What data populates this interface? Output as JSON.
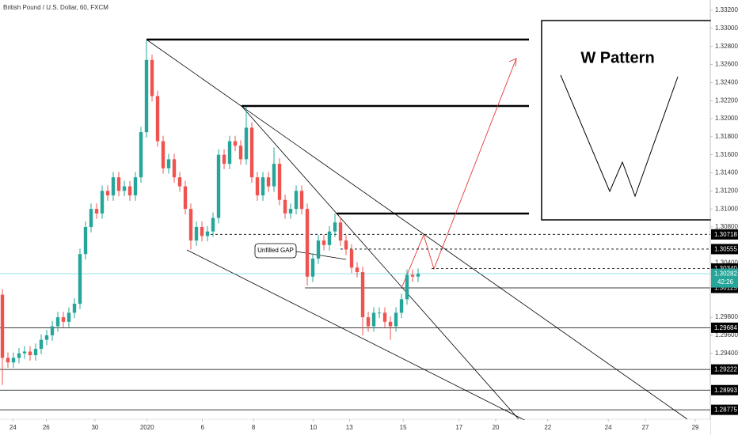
{
  "chart_data": {
    "type": "candlestick",
    "title": "British Pound / U.S. Dollar, 60, FXCM",
    "x": [
      0,
      1,
      2,
      3,
      4,
      5,
      6,
      7,
      8,
      9,
      10,
      11,
      12,
      13,
      14,
      15,
      16,
      17,
      18,
      19,
      20,
      21,
      22,
      23,
      24,
      25,
      26,
      27,
      28,
      29,
      30,
      31,
      32,
      33,
      34,
      35,
      36,
      37,
      38,
      39,
      40,
      41,
      42,
      43,
      44,
      45,
      46,
      47,
      48,
      49,
      50,
      51,
      52,
      53,
      54,
      55,
      56,
      57,
      58,
      59,
      60,
      61,
      62,
      63,
      64,
      65,
      66,
      67,
      68,
      69,
      70,
      71,
      72,
      73,
      74,
      75
    ],
    "ohlc": [
      [
        1.3005,
        1.3011,
        1.2905,
        1.2935
      ],
      [
        1.2935,
        1.2941,
        1.2924,
        1.293
      ],
      [
        1.293,
        1.2941,
        1.2924,
        1.2935
      ],
      [
        1.2935,
        1.2946,
        1.2929,
        1.294
      ],
      [
        1.294,
        1.2948,
        1.2934,
        1.2942
      ],
      [
        1.2942,
        1.2948,
        1.2932,
        1.2938
      ],
      [
        1.2938,
        1.2951,
        1.2932,
        1.2945
      ],
      [
        1.2945,
        1.2961,
        1.2939,
        1.2955
      ],
      [
        1.2955,
        1.2966,
        1.2949,
        1.296
      ],
      [
        1.296,
        1.2976,
        1.2954,
        1.297
      ],
      [
        1.297,
        1.2986,
        1.2964,
        1.298
      ],
      [
        1.298,
        1.2986,
        1.2969,
        1.2975
      ],
      [
        1.2975,
        1.2991,
        1.2969,
        1.2985
      ],
      [
        1.2985,
        1.3001,
        1.2979,
        1.2995
      ],
      [
        1.2995,
        1.3056,
        1.2989,
        1.305
      ],
      [
        1.305,
        1.3086,
        1.3044,
        1.308
      ],
      [
        1.308,
        1.3106,
        1.3074,
        1.31
      ],
      [
        1.31,
        1.3106,
        1.3089,
        1.3095
      ],
      [
        1.3095,
        1.3126,
        1.3089,
        1.312
      ],
      [
        1.312,
        1.3126,
        1.3109,
        1.3115
      ],
      [
        1.3115,
        1.3141,
        1.3109,
        1.3135
      ],
      [
        1.3135,
        1.3141,
        1.3114,
        1.312
      ],
      [
        1.312,
        1.3131,
        1.3114,
        1.3125
      ],
      [
        1.3125,
        1.3131,
        1.3109,
        1.3115
      ],
      [
        1.3115,
        1.3141,
        1.3109,
        1.3135
      ],
      [
        1.3135,
        1.3191,
        1.3129,
        1.3185
      ],
      [
        1.3185,
        1.3287,
        1.3179,
        1.3265
      ],
      [
        1.3265,
        1.3271,
        1.3219,
        1.3225
      ],
      [
        1.3225,
        1.3231,
        1.3169,
        1.3175
      ],
      [
        1.3175,
        1.3181,
        1.3139,
        1.3145
      ],
      [
        1.3145,
        1.3161,
        1.3139,
        1.3155
      ],
      [
        1.3155,
        1.3161,
        1.3129,
        1.3135
      ],
      [
        1.3135,
        1.3141,
        1.3119,
        1.3125
      ],
      [
        1.3125,
        1.3131,
        1.3094,
        1.31
      ],
      [
        1.31,
        1.3106,
        1.3055,
        1.3065
      ],
      [
        1.3065,
        1.3086,
        1.3059,
        1.308
      ],
      [
        1.308,
        1.3086,
        1.3064,
        1.307
      ],
      [
        1.307,
        1.3081,
        1.3064,
        1.3075
      ],
      [
        1.3075,
        1.3096,
        1.3069,
        1.309
      ],
      [
        1.309,
        1.3166,
        1.3084,
        1.316
      ],
      [
        1.316,
        1.3166,
        1.3144,
        1.315
      ],
      [
        1.315,
        1.3181,
        1.3144,
        1.3175
      ],
      [
        1.3175,
        1.3181,
        1.3164,
        1.317
      ],
      [
        1.317,
        1.3176,
        1.3149,
        1.3155
      ],
      [
        1.3155,
        1.3213,
        1.3149,
        1.319
      ],
      [
        1.319,
        1.3196,
        1.3129,
        1.3135
      ],
      [
        1.3135,
        1.3141,
        1.3109,
        1.3115
      ],
      [
        1.3115,
        1.3141,
        1.3109,
        1.3135
      ],
      [
        1.3135,
        1.3141,
        1.3119,
        1.3125
      ],
      [
        1.3125,
        1.3168,
        1.3119,
        1.315
      ],
      [
        1.315,
        1.3156,
        1.3104,
        1.311
      ],
      [
        1.311,
        1.3116,
        1.3089,
        1.3095
      ],
      [
        1.3095,
        1.3106,
        1.3089,
        1.31
      ],
      [
        1.31,
        1.3126,
        1.3094,
        1.312
      ],
      [
        1.312,
        1.3126,
        1.3094,
        1.31
      ],
      [
        1.31,
        1.3106,
        1.3015,
        1.3025
      ],
      [
        1.3025,
        1.3051,
        1.3019,
        1.3045
      ],
      [
        1.3045,
        1.3071,
        1.3039,
        1.3065
      ],
      [
        1.3065,
        1.3071,
        1.3054,
        1.306
      ],
      [
        1.306,
        1.3081,
        1.3054,
        1.3075
      ],
      [
        1.3075,
        1.3095,
        1.3069,
        1.3085
      ],
      [
        1.3085,
        1.3091,
        1.3059,
        1.3065
      ],
      [
        1.3065,
        1.3071,
        1.3049,
        1.3055
      ],
      [
        1.3055,
        1.3061,
        1.3029,
        1.3035
      ],
      [
        1.3035,
        1.3041,
        1.3024,
        1.303
      ],
      [
        1.303,
        1.3036,
        1.296,
        1.298
      ],
      [
        1.298,
        1.2986,
        1.2964,
        1.297
      ],
      [
        1.297,
        1.2991,
        1.2964,
        1.2985
      ],
      [
        1.2985,
        1.2991,
        1.2979,
        1.2985
      ],
      [
        1.2985,
        1.2991,
        1.2969,
        1.2975
      ],
      [
        1.2975,
        1.2981,
        1.2955,
        1.297
      ],
      [
        1.297,
        1.2991,
        1.2964,
        1.2985
      ],
      [
        1.2985,
        1.3006,
        1.2979,
        1.3
      ],
      [
        1.3,
        1.3033,
        1.2994,
        1.3027
      ],
      [
        1.3027,
        1.3033,
        1.3019,
        1.3025
      ],
      [
        1.3025,
        1.3034,
        1.3019,
        1.3028
      ]
    ],
    "up_color": "#26a69a",
    "down_color": "#ef5350",
    "xlim": [
      -0.43,
      127.71
    ],
    "xticks": [
      {
        "value": 1.9,
        "label": "24"
      },
      {
        "value": 7.9,
        "label": "26"
      },
      {
        "value": 16.7,
        "label": "30"
      },
      {
        "value": 26.1,
        "label": "2020"
      },
      {
        "value": 36.1,
        "label": "6"
      },
      {
        "value": 45.3,
        "label": "8"
      },
      {
        "value": 56.1,
        "label": "10"
      },
      {
        "value": 62.6,
        "label": "13"
      },
      {
        "value": 72.3,
        "label": "15"
      },
      {
        "value": 82.4,
        "label": "17"
      },
      {
        "value": 89,
        "label": "20"
      },
      {
        "value": 98.4,
        "label": "22"
      },
      {
        "value": 109.3,
        "label": "24"
      },
      {
        "value": 116,
        "label": "27"
      },
      {
        "value": 125,
        "label": "29"
      }
    ],
    "ylim": [
      1.28671,
      1.33314
    ],
    "yticks": [
      {
        "value": 1.294,
        "label": "1.29400"
      },
      {
        "value": 1.296,
        "label": "1.29600"
      },
      {
        "value": 1.298,
        "label": "1.29800"
      },
      {
        "value": 1.304,
        "label": "1.30400"
      },
      {
        "value": 1.308,
        "label": "1.30800"
      },
      {
        "value": 1.31,
        "label": "1.31000"
      },
      {
        "value": 1.312,
        "label": "1.31200"
      },
      {
        "value": 1.314,
        "label": "1.31400"
      },
      {
        "value": 1.316,
        "label": "1.31600"
      },
      {
        "value": 1.318,
        "label": "1.31800"
      },
      {
        "value": 1.32,
        "label": "1.32000"
      },
      {
        "value": 1.322,
        "label": "1.32200"
      },
      {
        "value": 1.324,
        "label": "1.32400"
      },
      {
        "value": 1.326,
        "label": "1.32600"
      },
      {
        "value": 1.328,
        "label": "1.32800"
      },
      {
        "value": 1.33,
        "label": "1.33000"
      },
      {
        "value": 1.332,
        "label": "1.33200"
      }
    ],
    "levels": [
      {
        "value": 1.30718,
        "label": "1.30718",
        "dashed": true
      },
      {
        "value": 1.30555,
        "label": "1.30555",
        "dashed": true
      },
      {
        "value": 1.3034,
        "label": "1.30340",
        "dashed": true
      },
      {
        "value": 1.30125,
        "label": "1.30125",
        "dashed": false
      },
      {
        "value": 1.29684,
        "label": "1.29684",
        "dashed": false
      },
      {
        "value": 1.29222,
        "label": "1.29222",
        "dashed": false
      },
      {
        "value": 1.28993,
        "label": "1.28993",
        "dashed": false
      },
      {
        "value": 1.28775,
        "label": "1.28775",
        "dashed": false
      }
    ],
    "last": {
      "value": 1.30282,
      "label": "1.30282",
      "color": "#26a69a"
    },
    "countdown": "42:26",
    "annotations": [
      "Unfilled GAP",
      "W Pattern"
    ]
  }
}
